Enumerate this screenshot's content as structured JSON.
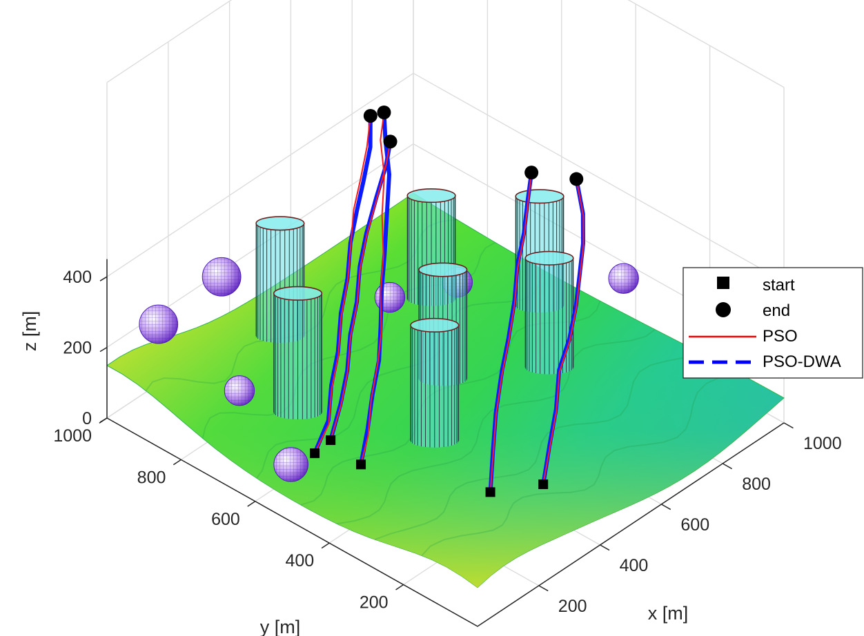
{
  "chart_data": {
    "type": "line",
    "projection": "3d",
    "xlabel": "x [m]",
    "ylabel": "y [m]",
    "zlabel": "z [m]",
    "xlim": [
      0,
      1000
    ],
    "ylim": [
      0,
      1000
    ],
    "zlim": [
      0,
      500
    ],
    "x_ticks": [
      "200",
      "400",
      "600",
      "800",
      "1000"
    ],
    "y_ticks": [
      "200",
      "400",
      "600",
      "800",
      "1000"
    ],
    "z_ticks": [
      "0",
      "200",
      "400"
    ],
    "grid": true,
    "legend_position": "right",
    "legend": [
      {
        "label": "start",
        "marker": "square",
        "color": "#000000"
      },
      {
        "label": "end",
        "marker": "circle",
        "color": "#000000"
      },
      {
        "label": "PSO",
        "line": "solid",
        "color": "#ff0000"
      },
      {
        "label": "PSO-DWA",
        "line": "dashed",
        "color": "#0000ff"
      }
    ],
    "terrain": {
      "type": "surface",
      "colormap": "jet",
      "z_range": [
        0,
        150
      ]
    },
    "cylinder_obstacles": [
      {
        "x": 420,
        "y": 880,
        "r": 60,
        "h": 380
      },
      {
        "x": 720,
        "y": 720,
        "r": 60,
        "h": 380
      },
      {
        "x": 880,
        "y": 560,
        "r": 60,
        "h": 380
      },
      {
        "x": 540,
        "y": 540,
        "r": 60,
        "h": 380
      },
      {
        "x": 260,
        "y": 700,
        "r": 60,
        "h": 380
      },
      {
        "x": 730,
        "y": 410,
        "r": 60,
        "h": 380
      },
      {
        "x": 380,
        "y": 430,
        "r": 60,
        "h": 380
      }
    ],
    "sphere_obstacles": [
      {
        "x": 120,
        "y": 960,
        "z": 220,
        "r": 45
      },
      {
        "x": 350,
        "y": 980,
        "z": 210,
        "r": 45
      },
      {
        "x": 660,
        "y": 600,
        "z": 240,
        "r": 35
      },
      {
        "x": 500,
        "y": 650,
        "z": 260,
        "r": 35
      },
      {
        "x": 20,
        "y": 520,
        "z": 140,
        "r": 40
      },
      {
        "x": 130,
        "y": 750,
        "z": 150,
        "r": 35
      },
      {
        "x": 900,
        "y": 350,
        "z": 260,
        "r": 35
      },
      {
        "x": 1030,
        "y": 140,
        "z": 180,
        "r": 35
      }
    ],
    "series": [
      {
        "name": "PSO",
        "paths": [
          [
            [
              200,
              480,
              60
            ],
            [
              260,
              510,
              90
            ],
            [
              330,
              560,
              120
            ],
            [
              400,
              600,
              160
            ],
            [
              460,
              640,
              190
            ],
            [
              530,
              700,
              230
            ],
            [
              600,
              750,
              260
            ],
            [
              680,
              820,
              290
            ],
            [
              760,
              880,
              320
            ],
            [
              820,
              940,
              350
            ],
            [
              880,
              980,
              370
            ]
          ],
          [
            [
              170,
              580,
              50
            ],
            [
              240,
              600,
              80
            ],
            [
              310,
              650,
              110
            ],
            [
              380,
              690,
              140
            ],
            [
              450,
              740,
              180
            ],
            [
              520,
              780,
              220
            ],
            [
              590,
              830,
              250
            ],
            [
              660,
              880,
              280
            ],
            [
              730,
              920,
              300
            ],
            [
              800,
              960,
              330
            ],
            [
              860,
              1000,
              360
            ]
          ],
          [
            [
              210,
              570,
              70
            ],
            [
              280,
              600,
              110
            ],
            [
              350,
              640,
              140
            ],
            [
              420,
              690,
              170
            ],
            [
              490,
              730,
              200
            ],
            [
              560,
              780,
              230
            ],
            [
              630,
              820,
              260
            ],
            [
              710,
              860,
              290
            ],
            [
              790,
              900,
              320
            ],
            [
              840,
              930,
              340
            ]
          ],
          [
            [
              320,
              230,
              60
            ],
            [
              390,
              280,
              100
            ],
            [
              460,
              330,
              140
            ],
            [
              540,
              380,
              180
            ],
            [
              610,
              420,
              210
            ],
            [
              690,
              470,
              240
            ],
            [
              760,
              520,
              270
            ],
            [
              830,
              560,
              300
            ],
            [
              890,
              600,
              330
            ],
            [
              950,
              640,
              360
            ]
          ],
          [
            [
              420,
              170,
              60
            ],
            [
              490,
              210,
              100
            ],
            [
              560,
              250,
              140
            ],
            [
              630,
              300,
              180
            ],
            [
              700,
              330,
              210
            ],
            [
              770,
              370,
              240
            ],
            [
              830,
              410,
              270
            ],
            [
              890,
              450,
              300
            ],
            [
              950,
              500,
              320
            ],
            [
              1000,
              560,
              360
            ]
          ]
        ]
      },
      {
        "name": "PSO-DWA",
        "paths": [
          [
            [
              200,
              480,
              60
            ],
            [
              270,
              520,
              95
            ],
            [
              340,
              565,
              125
            ],
            [
              410,
              605,
              160
            ],
            [
              470,
              650,
              195
            ],
            [
              540,
              705,
              230
            ],
            [
              610,
              755,
              260
            ],
            [
              690,
              815,
              290
            ],
            [
              770,
              875,
              320
            ],
            [
              830,
              935,
              350
            ],
            [
              880,
              980,
              370
            ]
          ],
          [
            [
              170,
              580,
              50
            ],
            [
              245,
              605,
              85
            ],
            [
              315,
              655,
              115
            ],
            [
              385,
              695,
              145
            ],
            [
              455,
              745,
              185
            ],
            [
              525,
              785,
              220
            ],
            [
              595,
              835,
              250
            ],
            [
              665,
              875,
              280
            ],
            [
              735,
              915,
              300
            ],
            [
              805,
              955,
              330
            ],
            [
              860,
              1000,
              360
            ]
          ],
          [
            [
              210,
              570,
              70
            ],
            [
              285,
              605,
              110
            ],
            [
              355,
              645,
              140
            ],
            [
              425,
              695,
              170
            ],
            [
              495,
              735,
              200
            ],
            [
              565,
              785,
              230
            ],
            [
              635,
              825,
              260
            ],
            [
              715,
              865,
              290
            ],
            [
              790,
              900,
              320
            ],
            [
              840,
              930,
              340
            ]
          ],
          [
            [
              320,
              230,
              60
            ],
            [
              395,
              285,
              100
            ],
            [
              465,
              335,
              140
            ],
            [
              545,
              385,
              180
            ],
            [
              615,
              425,
              210
            ],
            [
              695,
              475,
              240
            ],
            [
              765,
              525,
              270
            ],
            [
              835,
              565,
              300
            ],
            [
              895,
              605,
              330
            ],
            [
              950,
              640,
              360
            ]
          ],
          [
            [
              420,
              170,
              60
            ],
            [
              495,
              215,
              100
            ],
            [
              565,
              255,
              140
            ],
            [
              635,
              305,
              180
            ],
            [
              705,
              335,
              210
            ],
            [
              775,
              375,
              240
            ],
            [
              835,
              415,
              270
            ],
            [
              895,
              455,
              300
            ],
            [
              955,
              505,
              320
            ],
            [
              1000,
              560,
              360
            ]
          ]
        ]
      }
    ]
  }
}
